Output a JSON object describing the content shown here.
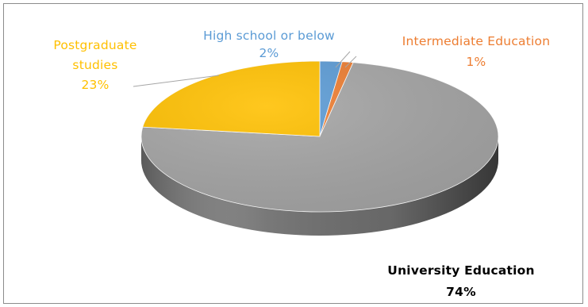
{
  "chart_data": {
    "type": "pie",
    "style": "3d",
    "legend": "none",
    "categories": [
      "High school or below",
      "Intermediate Education",
      "University Education",
      "Postgraduate studies"
    ],
    "values": [
      2,
      1,
      74,
      23
    ],
    "data_labels": [
      "2%",
      "1%",
      "74%",
      "23%"
    ],
    "colors": [
      "#5b9bd5",
      "#ed7d31",
      "#a5a5a5",
      "#ffc000"
    ],
    "side_colors": [
      "#3c6e9e",
      "#b35c22",
      "#6d6d6d",
      "#bf9000"
    ],
    "label_colors": [
      "#5b9bd5",
      "#ed7d31",
      "#000000",
      "#ffc000"
    ],
    "label_lines": {
      "High school or below": [
        "High school or below"
      ],
      "Intermediate Education": [
        "Intermediate Education"
      ],
      "University Education": [
        "University Education"
      ],
      "Postgraduate studies": [
        "Postgraduate",
        "studies"
      ]
    }
  }
}
